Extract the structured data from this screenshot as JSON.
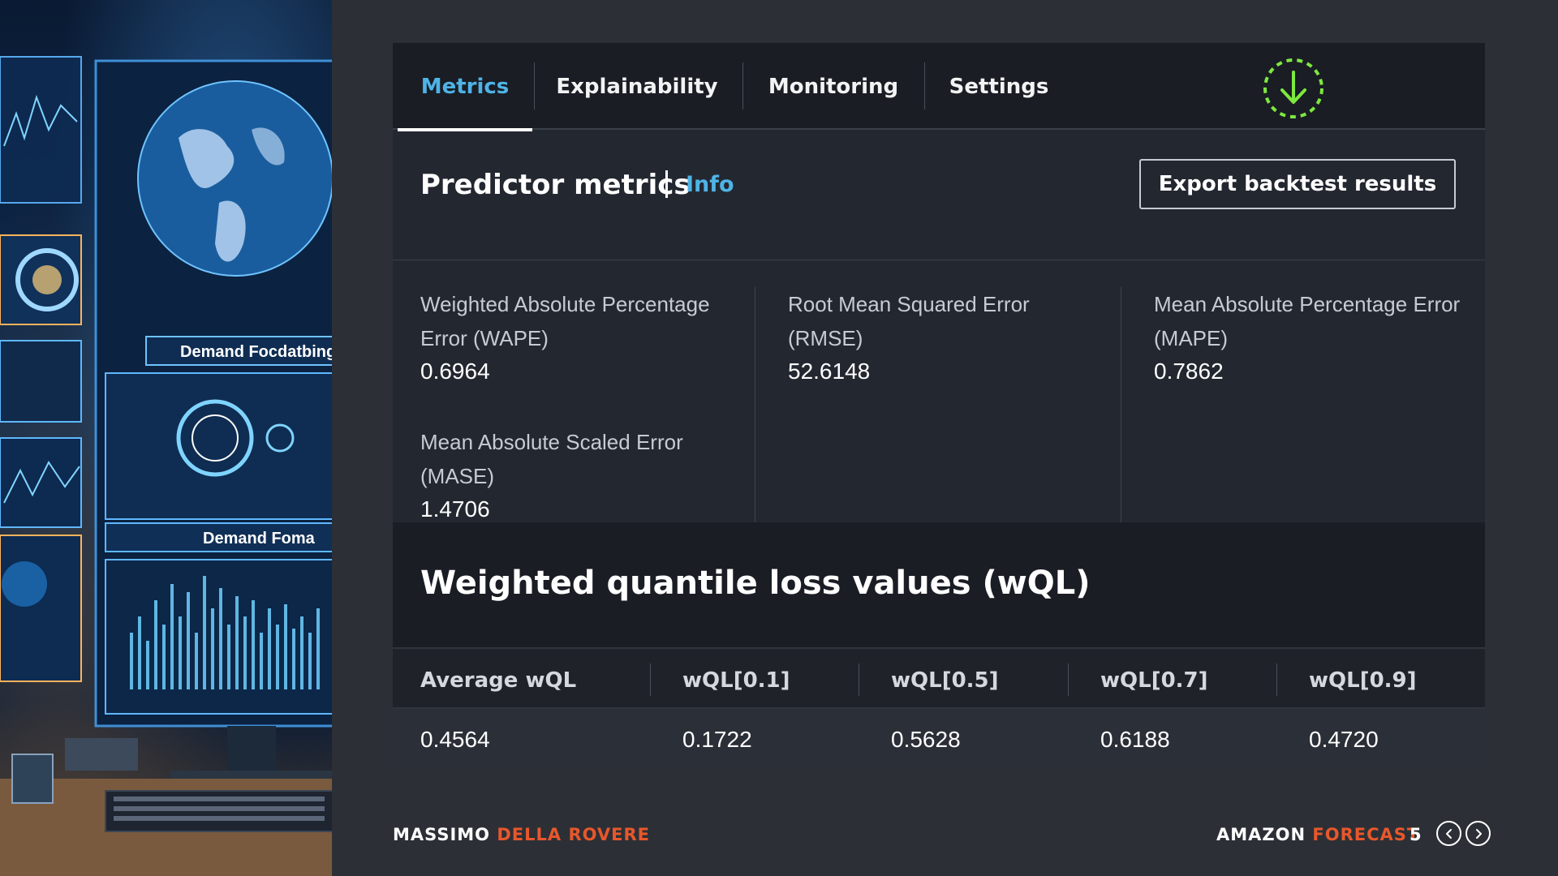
{
  "tabs": [
    {
      "label": "Metrics",
      "active": true
    },
    {
      "label": "Explainability",
      "active": false
    },
    {
      "label": "Monitoring",
      "active": false
    },
    {
      "label": "Settings",
      "active": false
    }
  ],
  "icons": {
    "download": "download-icon",
    "prev": "chevron-left-icon",
    "next": "chevron-right-icon"
  },
  "colors": {
    "accent_blue": "#4fb3e6",
    "accent_orange": "#e8572b",
    "download_green": "#7ee83f"
  },
  "header": {
    "title": "Predictor metrics",
    "info": "Info",
    "export_button": "Export backtest results"
  },
  "metrics": [
    {
      "label": "Weighted Absolute Percentage Error (WAPE)",
      "value": "0.6964"
    },
    {
      "label": "Root Mean Squared Error (RMSE)",
      "value": "52.6148"
    },
    {
      "label": "Mean Absolute Percentage Error (MAPE)",
      "value": "0.7862"
    },
    {
      "label": "Mean Absolute Scaled Error (MASE)",
      "value": "1.4706"
    }
  ],
  "wql": {
    "title": "Weighted quantile loss values (wQL)",
    "headers": [
      "Average wQL",
      "wQL[0.1]",
      "wQL[0.5]",
      "wQL[0.7]",
      "wQL[0.9]"
    ],
    "values": [
      "0.4564",
      "0.1722",
      "0.5628",
      "0.6188",
      "0.4720"
    ]
  },
  "footer": {
    "author_first": "MASSIMO",
    "author_last": "DELLA ROVERE",
    "product_first": "AMAZON",
    "product_last": "FORECAST",
    "page": "5"
  },
  "illustration": {
    "screen_caption_1": "Demand Focdatbing",
    "screen_caption_2": "Demand Foma"
  }
}
